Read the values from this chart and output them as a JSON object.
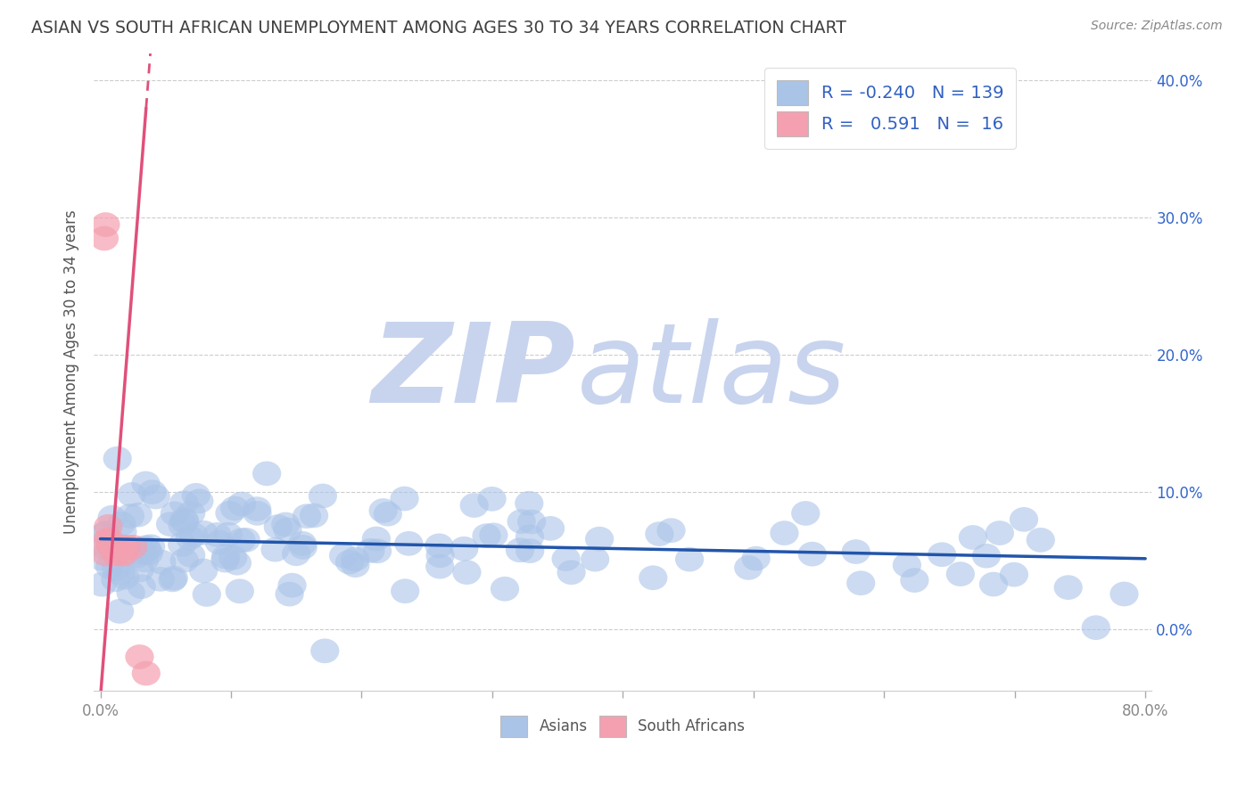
{
  "title": "ASIAN VS SOUTH AFRICAN UNEMPLOYMENT AMONG AGES 30 TO 34 YEARS CORRELATION CHART",
  "source_text": "Source: ZipAtlas.com",
  "ylabel": "Unemployment Among Ages 30 to 34 years",
  "xlim": [
    -0.005,
    0.805
  ],
  "ylim": [
    -0.045,
    0.42
  ],
  "xticks": [
    0.0,
    0.1,
    0.2,
    0.3,
    0.4,
    0.5,
    0.6,
    0.7,
    0.8
  ],
  "xtick_labels": [
    "0.0%",
    "",
    "",
    "",
    "",
    "",
    "",
    "",
    "80.0%"
  ],
  "yticks": [
    0.0,
    0.1,
    0.2,
    0.3,
    0.4
  ],
  "ytick_labels_right": [
    "0.0%",
    "10.0%",
    "20.0%",
    "30.0%",
    "40.0%"
  ],
  "grid_color": "#cccccc",
  "background_color": "#ffffff",
  "watermark_zip": "ZIP",
  "watermark_atlas": "atlas",
  "watermark_color": "#c8d4ee",
  "legend_R_asian": "-0.240",
  "legend_N_asian": "139",
  "legend_R_sa": "0.591",
  "legend_N_sa": "16",
  "asian_color": "#aac4e8",
  "sa_color": "#f4a0b0",
  "asian_line_color": "#2255aa",
  "sa_line_color": "#e0507a",
  "title_color": "#404040",
  "source_color": "#888888",
  "tick_label_color_x": "#888888",
  "tick_label_color_y": "#3366cc"
}
